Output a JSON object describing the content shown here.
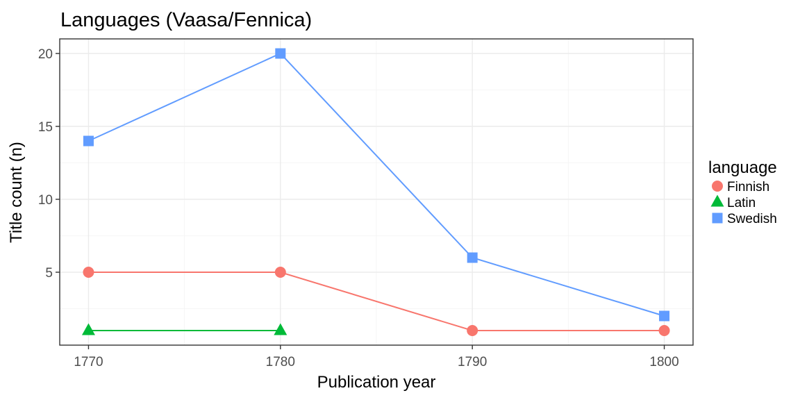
{
  "chart_data": {
    "type": "line",
    "title": "Languages (Vaasa/Fennica)",
    "xlabel": "Publication year",
    "ylabel": "Title count (n)",
    "x_ticks": [
      1770,
      1780,
      1790,
      1800
    ],
    "y_ticks": [
      5,
      10,
      15,
      20
    ],
    "xlim": [
      1768.5,
      1801.5
    ],
    "ylim": [
      0,
      21
    ],
    "grid": true,
    "legend": {
      "title": "language",
      "placement": "right"
    },
    "series": [
      {
        "name": "Finnish",
        "color": "#F8766D",
        "marker": "circle",
        "x": [
          1770,
          1780,
          1790,
          1800
        ],
        "values": [
          5,
          5,
          1,
          1
        ]
      },
      {
        "name": "Latin",
        "color": "#00BA38",
        "marker": "triangle",
        "x": [
          1770,
          1780
        ],
        "values": [
          1,
          1
        ]
      },
      {
        "name": "Swedish",
        "color": "#619CFF",
        "marker": "square",
        "x": [
          1770,
          1780,
          1790,
          1800
        ],
        "values": [
          14,
          20,
          6,
          2
        ]
      }
    ]
  }
}
